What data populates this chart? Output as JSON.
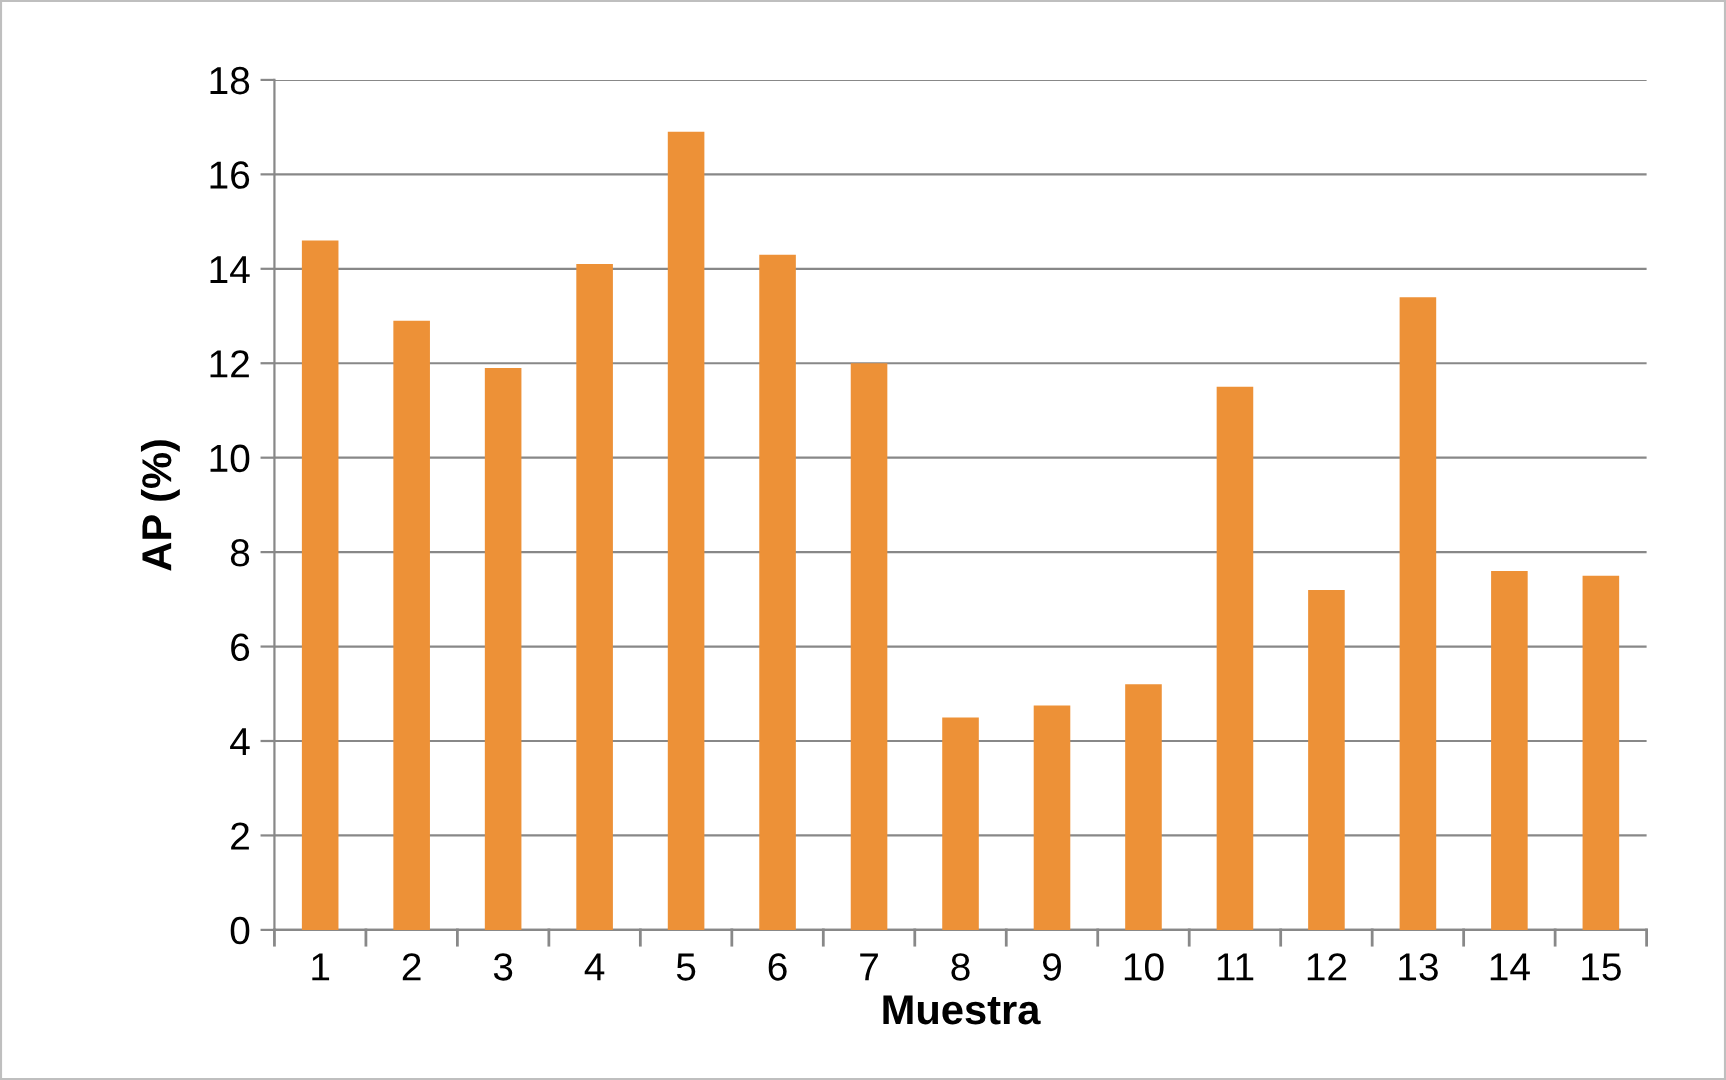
{
  "chart_data": {
    "type": "bar",
    "xlabel": "Muestra",
    "ylabel": "AP (%)",
    "categories": [
      "1",
      "2",
      "3",
      "4",
      "5",
      "6",
      "7",
      "8",
      "9",
      "10",
      "11",
      "12",
      "13",
      "14",
      "15"
    ],
    "values": [
      14.6,
      12.9,
      11.9,
      14.1,
      16.9,
      14.3,
      12.0,
      4.5,
      4.75,
      5.2,
      11.5,
      7.2,
      13.4,
      7.6,
      7.5
    ],
    "color": "#ed9137",
    "ylim": [
      0,
      18
    ],
    "yticks": [
      0,
      2,
      4,
      6,
      8,
      10,
      12,
      14,
      16,
      18
    ],
    "grid": "y",
    "legend": false
  }
}
